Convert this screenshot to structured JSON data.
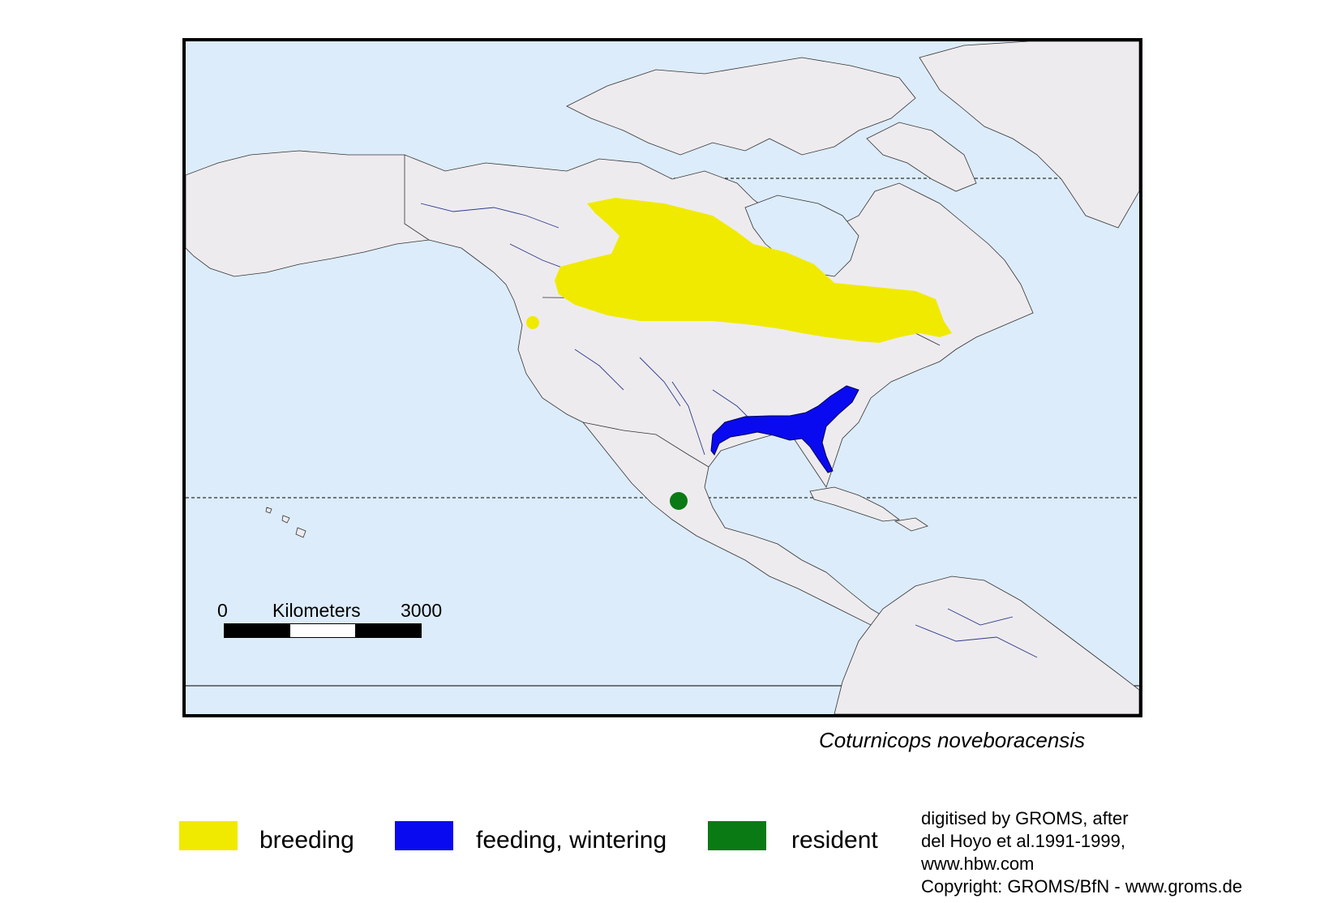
{
  "map": {
    "species_name": "Coturnicops noveboracensis",
    "colors": {
      "ocean": "#dcecfa",
      "land": "#eeebef",
      "breeding": "#f0ea00",
      "wintering": "#0a0af0",
      "resident": "#0a7a14"
    },
    "scale_bar": {
      "start_label": "0",
      "unit_label": "Kilometers",
      "end_label": "3000",
      "segment_colors": [
        "#000000",
        "#000000",
        "#ffffff",
        "#ffffff",
        "#000000",
        "#000000"
      ]
    }
  },
  "legend": {
    "items": [
      {
        "label": "breeding",
        "color": "#f0ea00"
      },
      {
        "label": "feeding, wintering",
        "color": "#0a0af0"
      },
      {
        "label": "resident",
        "color": "#0a7a14"
      }
    ]
  },
  "credits": {
    "lines": [
      "digitised by GROMS, after",
      "del Hoyo et al.1991-1999,",
      "www.hbw.com",
      "Copyright: GROMS/BfN - www.groms.de"
    ]
  }
}
